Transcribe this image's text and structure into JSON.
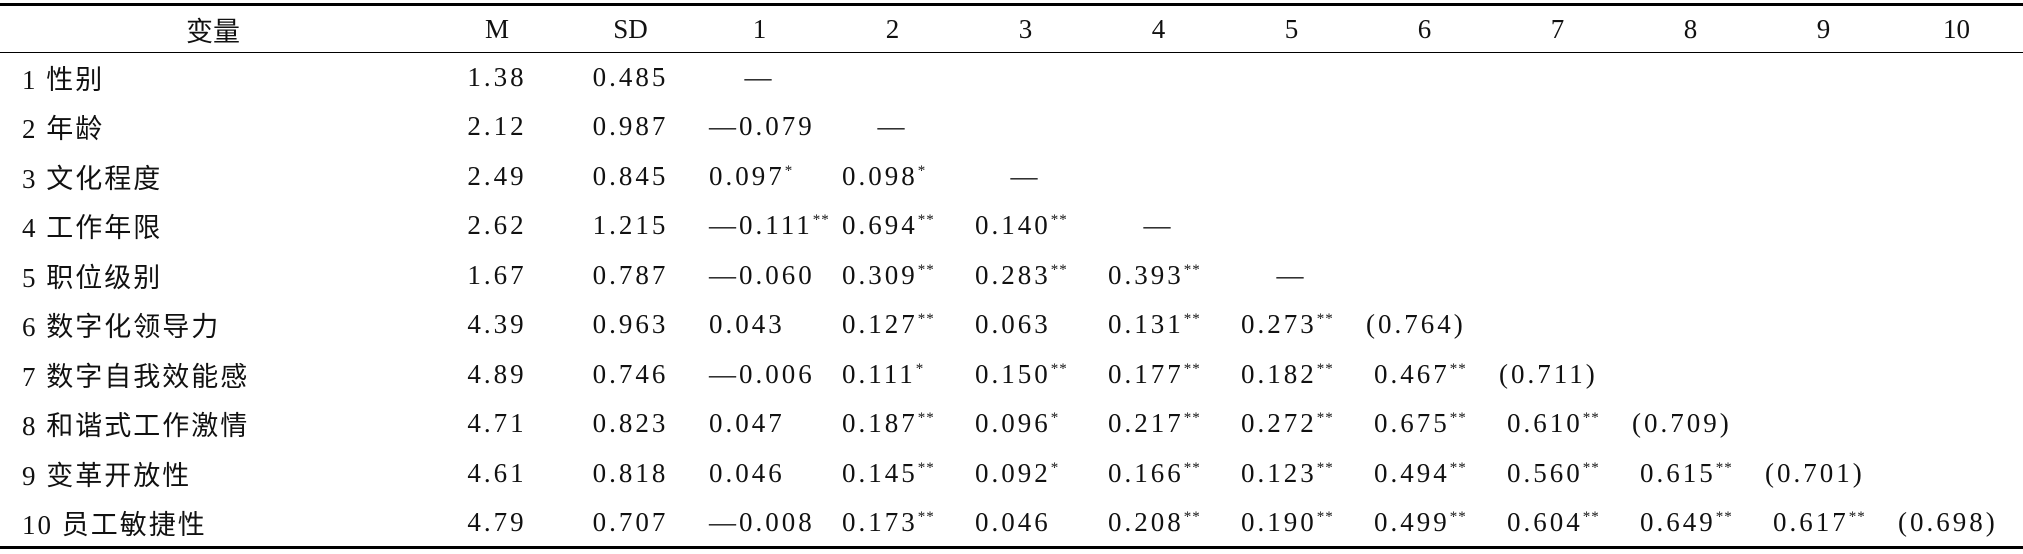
{
  "table": {
    "header": [
      "变量",
      "M",
      "SD",
      "1",
      "2",
      "3",
      "4",
      "5",
      "6",
      "7",
      "8",
      "9",
      "10"
    ],
    "rows": [
      [
        "1 性别",
        "1.38",
        "0.485",
        "—"
      ],
      [
        "2 年龄",
        "2.12",
        "0.987",
        "—0.079",
        "—"
      ],
      [
        "3 文化程度",
        "2.49",
        "0.845",
        {
          "text": "0.097",
          "sup": "*"
        },
        {
          "text": "0.098",
          "sup": "*"
        },
        "—"
      ],
      [
        "4 工作年限",
        "2.62",
        "1.215",
        {
          "text": "—0.111",
          "sup": "**"
        },
        {
          "text": "0.694",
          "sup": "**"
        },
        {
          "text": "0.140",
          "sup": "**"
        },
        "—"
      ],
      [
        "5 职位级别",
        "1.67",
        "0.787",
        "—0.060",
        {
          "text": "0.309",
          "sup": "**"
        },
        {
          "text": "0.283",
          "sup": "**"
        },
        {
          "text": "0.393",
          "sup": "**"
        },
        "—"
      ],
      [
        "6 数字化领导力",
        "4.39",
        "0.963",
        "0.043",
        {
          "text": "0.127",
          "sup": "**"
        },
        "0.063",
        {
          "text": "0.131",
          "sup": "**"
        },
        {
          "text": "0.273",
          "sup": "**"
        },
        "(0.764)"
      ],
      [
        "7 数字自我效能感",
        "4.89",
        "0.746",
        "—0.006",
        {
          "text": "0.111",
          "sup": "*"
        },
        {
          "text": "0.150",
          "sup": "**"
        },
        {
          "text": "0.177",
          "sup": "**"
        },
        {
          "text": "0.182",
          "sup": "**"
        },
        {
          "text": "0.467",
          "sup": "**"
        },
        "(0.711)"
      ],
      [
        "8 和谐式工作激情",
        "4.71",
        "0.823",
        "0.047",
        {
          "text": "0.187",
          "sup": "**"
        },
        {
          "text": "0.096",
          "sup": "*"
        },
        {
          "text": "0.217",
          "sup": "**"
        },
        {
          "text": "0.272",
          "sup": "**"
        },
        {
          "text": "0.675",
          "sup": "**"
        },
        {
          "text": "0.610",
          "sup": "**"
        },
        "(0.709)"
      ],
      [
        "9 变革开放性",
        "4.61",
        "0.818",
        "0.046",
        {
          "text": "0.145",
          "sup": "**"
        },
        {
          "text": "0.092",
          "sup": "*"
        },
        {
          "text": "0.166",
          "sup": "**"
        },
        {
          "text": "0.123",
          "sup": "**"
        },
        {
          "text": "0.494",
          "sup": "**"
        },
        {
          "text": "0.560",
          "sup": "**"
        },
        {
          "text": "0.615",
          "sup": "**"
        },
        "(0.701)"
      ],
      [
        "10 员工敏捷性",
        "4.79",
        "0.707",
        "—0.008",
        {
          "text": "0.173",
          "sup": "**"
        },
        "0.046",
        {
          "text": "0.208",
          "sup": "**"
        },
        {
          "text": "0.190",
          "sup": "**"
        },
        {
          "text": "0.499",
          "sup": "**"
        },
        {
          "text": "0.604",
          "sup": "**"
        },
        {
          "text": "0.649",
          "sup": "**"
        },
        {
          "text": "0.617",
          "sup": "**"
        },
        "(0.698)"
      ]
    ]
  }
}
